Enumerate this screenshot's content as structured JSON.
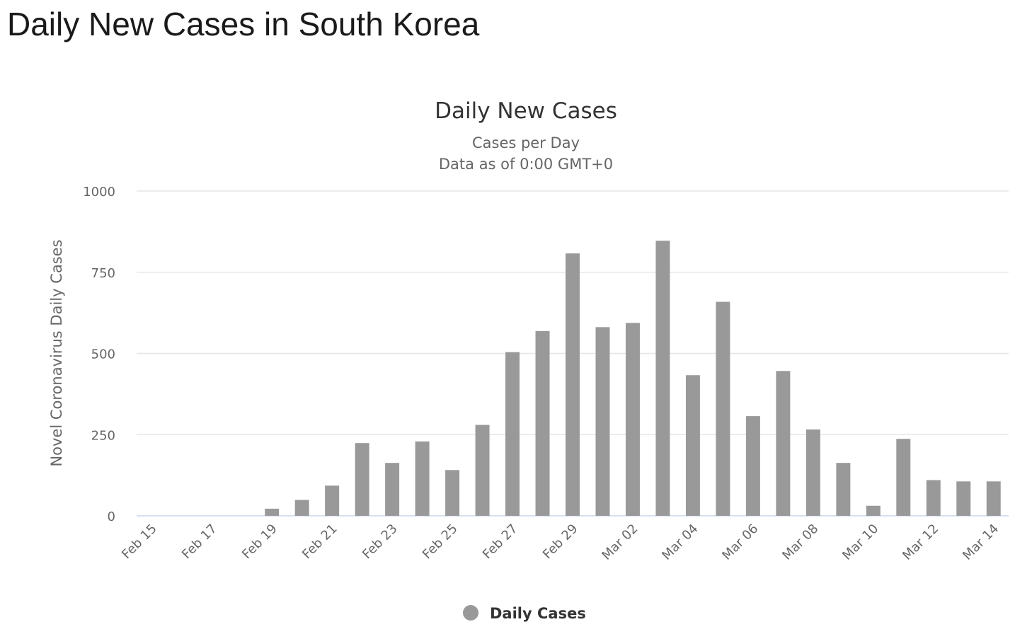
{
  "page_title": "Daily New Cases in South Korea",
  "chart_data": {
    "type": "bar",
    "title": "Daily New Cases",
    "subtitle": [
      "Cases per Day",
      "Data as of 0:00 GMT+0"
    ],
    "xlabel": "",
    "ylabel": "Novel Coronavirus Daily Cases",
    "ylim": [
      0,
      1000
    ],
    "y_ticks": [
      0,
      250,
      500,
      750,
      1000
    ],
    "x_tick_labels": [
      "Feb 15",
      "Feb 17",
      "Feb 19",
      "Feb 21",
      "Feb 23",
      "Feb 25",
      "Feb 27",
      "Feb 29",
      "Mar 02",
      "Mar 04",
      "Mar 06",
      "Mar 08",
      "Mar 10",
      "Mar 12",
      "Mar 14"
    ],
    "categories": [
      "Feb 15",
      "Feb 16",
      "Feb 17",
      "Feb 18",
      "Feb 19",
      "Feb 20",
      "Feb 21",
      "Feb 22",
      "Feb 23",
      "Feb 24",
      "Feb 25",
      "Feb 26",
      "Feb 27",
      "Feb 28",
      "Feb 29",
      "Mar 01",
      "Mar 02",
      "Mar 03",
      "Mar 04",
      "Mar 05",
      "Mar 06",
      "Mar 07",
      "Mar 08",
      "Mar 09",
      "Mar 10",
      "Mar 11",
      "Mar 12",
      "Mar 13",
      "Mar 14"
    ],
    "series": [
      {
        "name": "Daily Cases",
        "color": "#999999",
        "values": [
          0,
          0,
          0,
          0,
          22,
          49,
          93,
          224,
          163,
          229,
          141,
          280,
          504,
          569,
          808,
          581,
          594,
          847,
          433,
          659,
          307,
          446,
          266,
          163,
          31,
          237,
          110,
          106,
          106
        ]
      }
    ],
    "grid": true,
    "legend_position": "bottom-center"
  }
}
